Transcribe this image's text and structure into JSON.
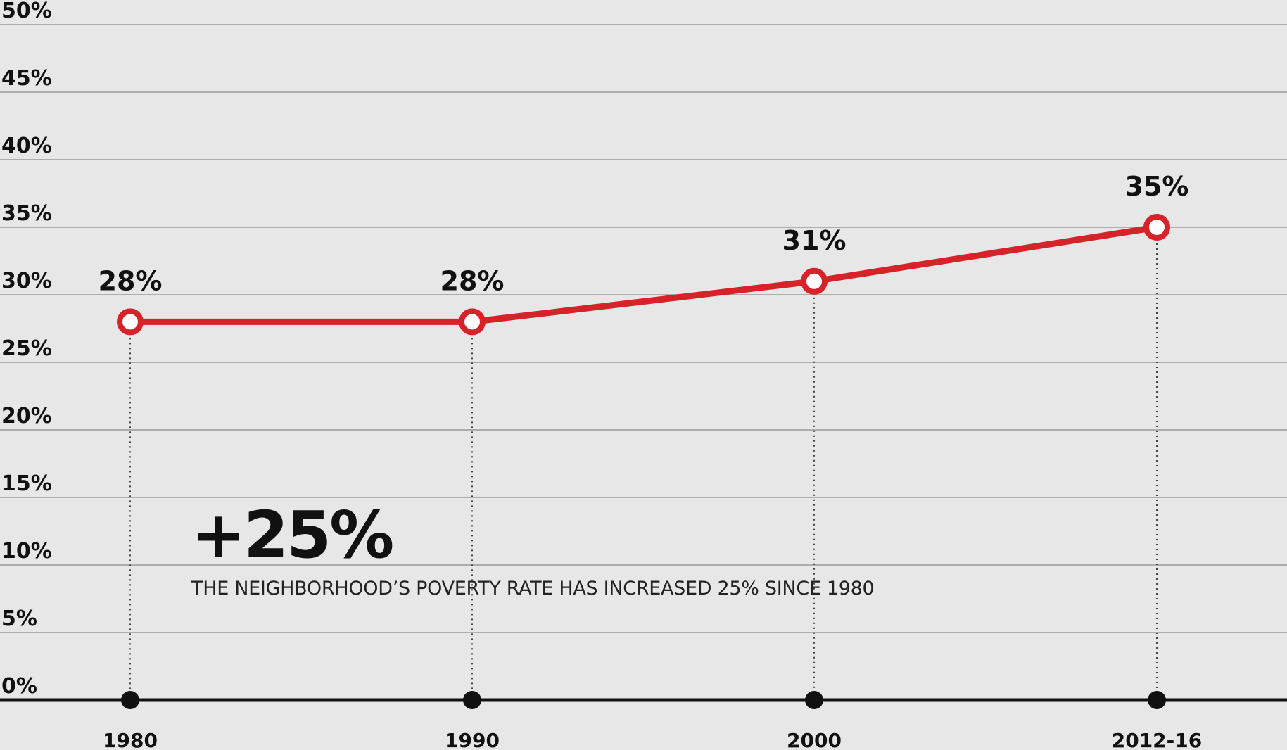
{
  "chart_data": {
    "type": "line",
    "categories": [
      "1980",
      "1990",
      "2000",
      "2012-16"
    ],
    "series": [
      {
        "values": [
          28,
          28,
          31,
          35
        ],
        "color": "#d62229"
      }
    ],
    "data_labels": [
      "28%",
      "28%",
      "31%",
      "35%"
    ],
    "y_ticks": [
      "0%",
      "5%",
      "10%",
      "15%",
      "20%",
      "25%",
      "30%",
      "35%",
      "40%",
      "45%",
      "50%"
    ],
    "ylim": [
      0,
      50
    ],
    "grid": true,
    "title": "",
    "xlabel": "",
    "ylabel": ""
  },
  "callout": {
    "value": "+25%",
    "text": "THE NEIGHBORHOOD’S POVERTY RATE HAS INCREASED 25% SINCE 1980"
  },
  "colors": {
    "background": "#e7e7e7",
    "line": "#d62229",
    "gridline": "#9a9a9a",
    "axis": "#111111"
  }
}
